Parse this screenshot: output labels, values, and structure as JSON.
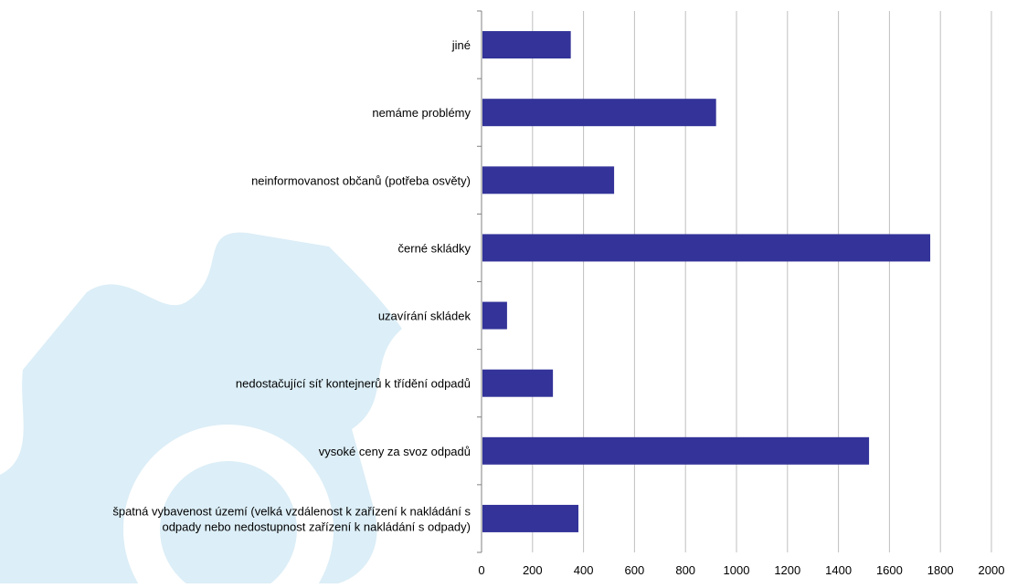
{
  "chart_data": {
    "type": "bar",
    "orientation": "horizontal",
    "categories": [
      "jiné",
      "nemáme problémy",
      "neinformovanost občanů (potřeba osvěty)",
      "černé skládky",
      "uzavírání skládek",
      "nedostačující síť kontejnerů k třídění odpadů",
      "vysoké ceny za svoz odpadů",
      "špatná vybavenost území (velká vzdálenost k zařízení k nakládání s odpady nebo nedostupnost zařízení k nakládání s odpady)"
    ],
    "category_label_lines": [
      [
        "jiné"
      ],
      [
        "nemáme problémy"
      ],
      [
        "neinformovanost občanů (potřeba osvěty)"
      ],
      [
        "černé skládky"
      ],
      [
        "uzavírání skládek"
      ],
      [
        "nedostačující síť kontejnerů k třídění odpadů"
      ],
      [
        "vysoké ceny za svoz odpadů"
      ],
      [
        "špatná vybavenost území (velká vzdálenost k zařízení k nakládání s",
        "odpady nebo nedostupnost zařízení k nakládání s odpady)"
      ]
    ],
    "values": [
      350,
      920,
      520,
      1760,
      100,
      280,
      1520,
      380
    ],
    "xlim": [
      0,
      2000
    ],
    "xticks": [
      0,
      200,
      400,
      600,
      800,
      1000,
      1200,
      1400,
      1600,
      1800,
      2000
    ],
    "grid": true,
    "legend": "none",
    "colors": {
      "bar": "#333399",
      "grid": "#bfbfbf",
      "axis": "#808080",
      "text": "#000000",
      "watermark": "#dceef7"
    }
  }
}
